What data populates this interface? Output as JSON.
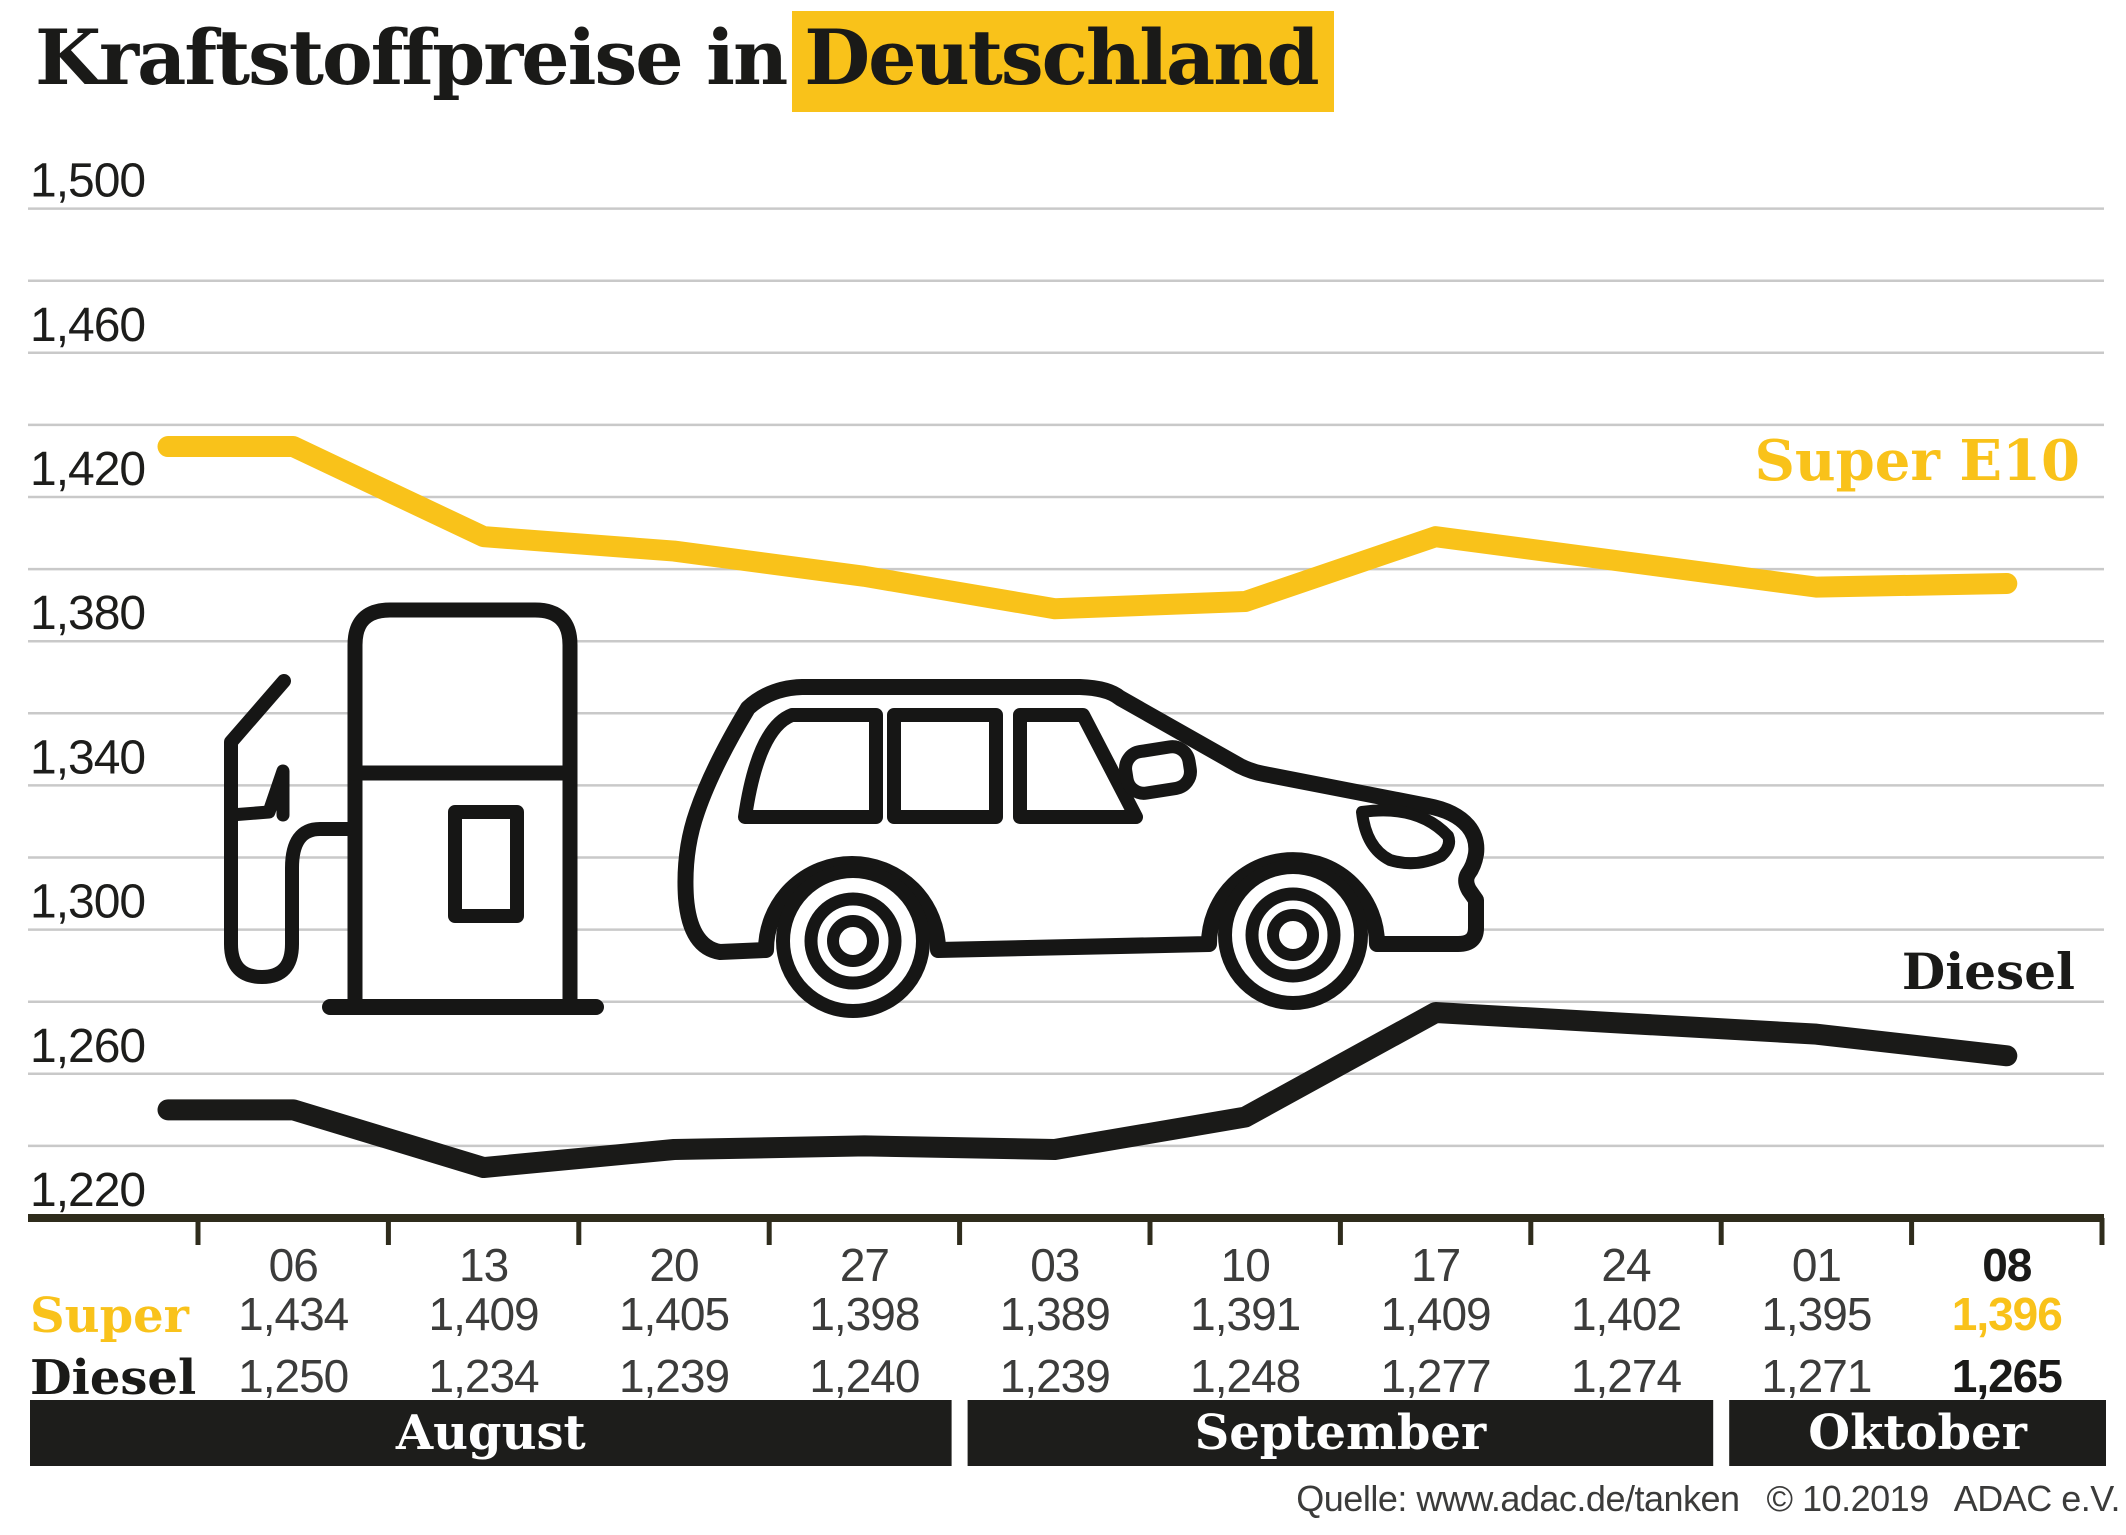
{
  "title": {
    "prefix": "Kraftstoffpreise in",
    "highlighted": "Deutschland"
  },
  "legend": {
    "super": "Super E10",
    "diesel": "Diesel"
  },
  "source_note": "Quelle: www.adac.de/tanken  © 10.2019  ADAC e.V.",
  "colors": {
    "accent_yellow": "#f9c21a",
    "ink": "#1a1a18",
    "icon_ink": "#161615",
    "value_text": "#3c3c3b",
    "gridline": "#c9c9c9",
    "axis": "#2f2c1c",
    "month_bar_bg": "#1d1d1b",
    "month_bar_text": "#ffffff"
  },
  "chart_data": {
    "type": "line",
    "title": "Kraftstoffpreise in Deutschland",
    "xlabel": "",
    "ylabel": "",
    "x": [
      "06",
      "13",
      "20",
      "27",
      "03",
      "10",
      "17",
      "24",
      "01",
      "08"
    ],
    "months": [
      {
        "label": "August",
        "from_tick": 0,
        "to_tick": 4
      },
      {
        "label": "September",
        "from_tick": 4,
        "to_tick": 8
      },
      {
        "label": "Oktober",
        "from_tick": 8,
        "to_tick": 10
      }
    ],
    "ylim": [
      1220,
      1500
    ],
    "y_gridline_step": 20,
    "y_label_step": 40,
    "y_tick_labels": [
      "1,500",
      "1,460",
      "1,420",
      "1,380",
      "1,340",
      "1,300",
      "1,260",
      "1,220"
    ],
    "grid": true,
    "legend_position": "inline-right",
    "series": [
      {
        "name": "Super E10",
        "color": "#f9c21a",
        "values": [
          1434,
          1409,
          1405,
          1398,
          1389,
          1391,
          1409,
          1402,
          1395,
          1396
        ]
      },
      {
        "name": "Diesel",
        "color": "#1a1a18",
        "values": [
          1250,
          1234,
          1239,
          1240,
          1239,
          1248,
          1277,
          1274,
          1271,
          1265
        ]
      }
    ]
  },
  "table": {
    "row_labels": [
      "Super",
      "Diesel"
    ],
    "rows": [
      [
        "1,434",
        "1,409",
        "1,405",
        "1,398",
        "1,389",
        "1,391",
        "1,409",
        "1,402",
        "1,395",
        "1,396"
      ],
      [
        "1,250",
        "1,234",
        "1,239",
        "1,240",
        "1,239",
        "1,248",
        "1,277",
        "1,274",
        "1,271",
        "1,265"
      ]
    ],
    "bold_last_column": true
  }
}
